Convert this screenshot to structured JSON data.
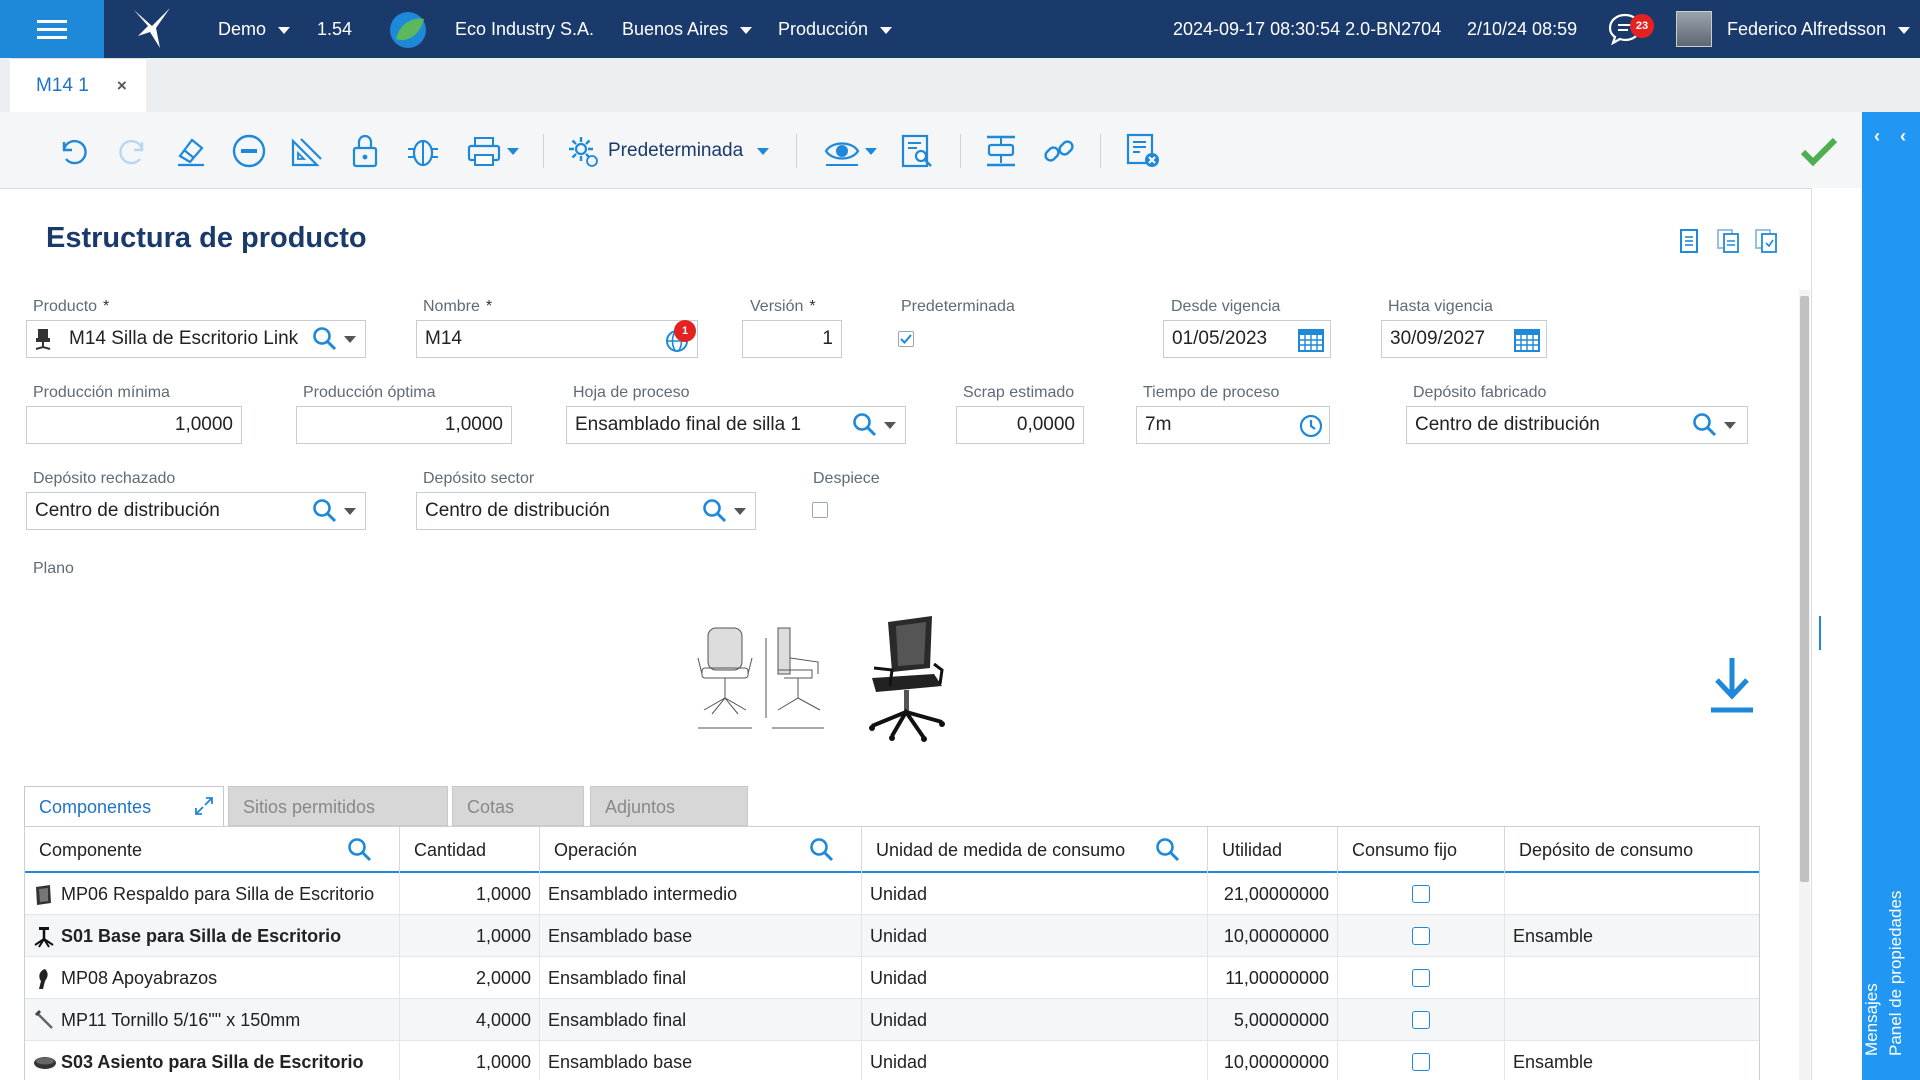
{
  "topbar": {
    "company_env": "Demo",
    "version": "1.54",
    "company": "Eco Industry S.A.",
    "branch": "Buenos Aires",
    "module": "Producción",
    "build": "2024-09-17 08:30:54 2.0-BN2704",
    "datetime": "2/10/24 08:59",
    "notifications": "23",
    "user": "Federico Alfredsson"
  },
  "tabs": {
    "doc_tab": "M14 1",
    "close": "×"
  },
  "toolbar": {
    "view_label": "Predeterminada"
  },
  "right_panel": {
    "properties": "Panel de propiedades",
    "messages": "Mensajes"
  },
  "form": {
    "title": "Estructura de producto",
    "producto": {
      "label": "Producto",
      "value": "M14 Silla de Escritorio Link"
    },
    "nombre": {
      "label": "Nombre",
      "value": "M14",
      "badge": "1"
    },
    "version": {
      "label": "Versión",
      "value": "1"
    },
    "predeterminada": {
      "label": "Predeterminada",
      "checked": true
    },
    "desde": {
      "label": "Desde vigencia",
      "value": "01/05/2023"
    },
    "hasta": {
      "label": "Hasta vigencia",
      "value": "30/09/2027"
    },
    "prod_min": {
      "label": "Producción mínima",
      "value": "1,0000"
    },
    "prod_opt": {
      "label": "Producción óptima",
      "value": "1,0000"
    },
    "hoja": {
      "label": "Hoja de proceso",
      "value": "Ensamblado final de silla 1"
    },
    "scrap": {
      "label": "Scrap estimado",
      "value": "0,0000"
    },
    "tiempo": {
      "label": "Tiempo de proceso",
      "value": "7m"
    },
    "dep_fab": {
      "label": "Depósito fabricado",
      "value": "Centro de distribución"
    },
    "dep_rech": {
      "label": "Depósito rechazado",
      "value": "Centro de distribución"
    },
    "dep_sector": {
      "label": "Depósito sector",
      "value": "Centro de distribución"
    },
    "despiece": {
      "label": "Despiece",
      "checked": false
    },
    "plano": {
      "label": "Plano"
    }
  },
  "detail_tabs": [
    "Componentes",
    "Sitios permitidos",
    "Cotas",
    "Adjuntos"
  ],
  "grid": {
    "headers": [
      "Componente",
      "Cantidad",
      "Operación",
      "Unidad de medida de consumo",
      "Utilidad",
      "Consumo fijo",
      "Depósito de consumo"
    ],
    "rows": [
      {
        "componente": "MP06 Respaldo para Silla de Escritorio",
        "cantidad": "1,0000",
        "operacion": "Ensamblado intermedio",
        "unidad": "Unidad",
        "utilidad": "21,00000000",
        "fijo": false,
        "deposito": "",
        "bold": false
      },
      {
        "componente": "S01 Base para Silla de Escritorio",
        "cantidad": "1,0000",
        "operacion": "Ensamblado base",
        "unidad": "Unidad",
        "utilidad": "10,00000000",
        "fijo": false,
        "deposito": "Ensamble",
        "bold": true
      },
      {
        "componente": "MP08 Apoyabrazos",
        "cantidad": "2,0000",
        "operacion": "Ensamblado final",
        "unidad": "Unidad",
        "utilidad": "11,00000000",
        "fijo": false,
        "deposito": "",
        "bold": false
      },
      {
        "componente": "MP11 Tornillo 5/16\"\" x 150mm",
        "cantidad": "4,0000",
        "operacion": "Ensamblado final",
        "unidad": "Unidad",
        "utilidad": "5,00000000",
        "fijo": false,
        "deposito": "",
        "bold": false
      },
      {
        "componente": "S03 Asiento para Silla de Escritorio",
        "cantidad": "1,0000",
        "operacion": "Ensamblado base",
        "unidad": "Unidad",
        "utilidad": "10,00000000",
        "fijo": false,
        "deposito": "Ensamble",
        "bold": true
      }
    ]
  },
  "colors": {
    "topbar": "#1a3a6b",
    "accent": "#1e88d9",
    "title": "#1a3a6b",
    "confirm": "#4caf50",
    "badge": "#e52222"
  }
}
